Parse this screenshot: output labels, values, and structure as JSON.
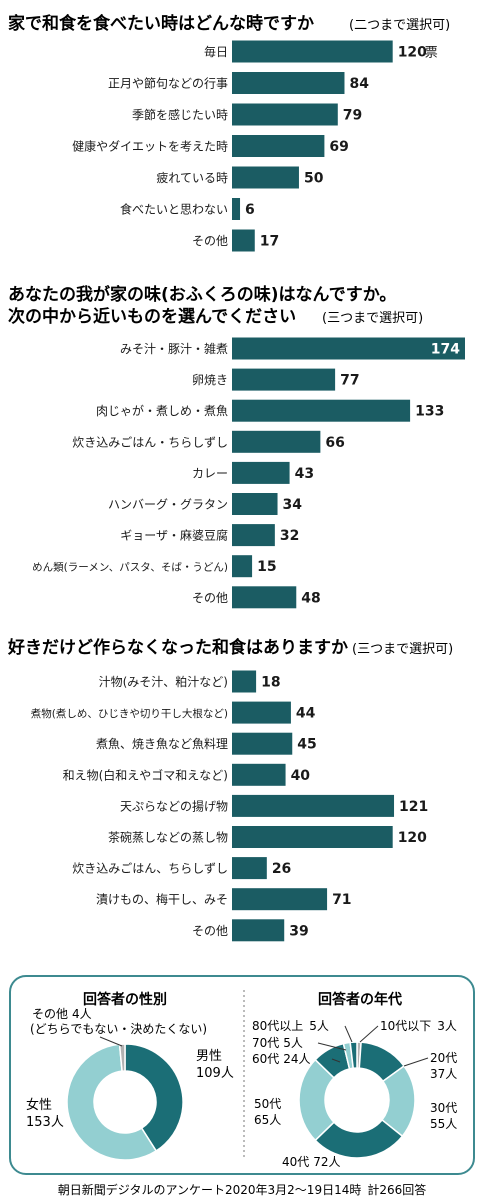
{
  "colors": {
    "bar": "#1b5c63",
    "donut_dark": "#1b6e76",
    "donut_light": "#93cfd1",
    "donut_gray": "#b2b2b2",
    "box_border": "#3d8a90",
    "text": "#1a1a1a"
  },
  "chart_data": [
    {
      "type": "bar",
      "orientation": "horizontal",
      "title": "家で和食を食べたい時はどんな時ですか",
      "subtitle": "(二つまで選択可)",
      "categories": [
        "毎日",
        "正月や節句などの行事",
        "季節を感じたい時",
        "健康やダイエットを考えた時",
        "疲れている時",
        "食べたいと思わない",
        "その他"
      ],
      "values": [
        120,
        84,
        79,
        69,
        50,
        6,
        17
      ],
      "value_labels": [
        "120",
        "84",
        "79",
        "69",
        "50",
        "6",
        "17"
      ],
      "unit_on_first": "票"
    },
    {
      "type": "bar",
      "orientation": "horizontal",
      "title": "あなたの我が家の味(おふくろの味)はなんですか。",
      "title2": "次の中から近いものを選んでください",
      "subtitle": "(三つまで選択可)",
      "categories": [
        "みそ汁・豚汁・雑煮",
        "卵焼き",
        "肉じゃが・煮しめ・煮魚",
        "炊き込みごはん・ちらしずし",
        "カレー",
        "ハンバーグ・グラタン",
        "ギョーザ・麻婆豆腐",
        "めん類(ラーメン、パスタ、そば・うどん)",
        "その他"
      ],
      "values": [
        174,
        77,
        133,
        66,
        43,
        34,
        32,
        15,
        48
      ],
      "value_labels": [
        "174",
        "77",
        "133",
        "66",
        "43",
        "34",
        "32",
        "15",
        "48"
      ]
    },
    {
      "type": "bar",
      "orientation": "horizontal",
      "title": "好きだけど作らなくなった和食はありますか",
      "subtitle": "(三つまで選択可)",
      "categories": [
        "汁物(みそ汁、粕汁など)",
        "煮物(煮しめ、ひじきや切り干し大根など)",
        "煮魚、焼き魚など魚料理",
        "和え物(白和えやゴマ和えなど)",
        "天ぷらなどの揚げ物",
        "茶碗蒸しなどの蒸し物",
        "炊き込みごはん、ちらしずし",
        "漬けもの、梅干し、みそ",
        "その他"
      ],
      "values": [
        18,
        44,
        45,
        40,
        121,
        120,
        26,
        71,
        39
      ],
      "value_labels": [
        "18",
        "44",
        "45",
        "40",
        "121",
        "120",
        "26",
        "71",
        "39"
      ]
    },
    {
      "type": "pie",
      "donut": true,
      "title": "回答者の性別",
      "slices": [
        {
          "label": "男性",
          "value_text": "109人",
          "value": 109,
          "color_key": "donut_dark"
        },
        {
          "label": "女性",
          "value_text": "153人",
          "value": 153,
          "color_key": "donut_light"
        },
        {
          "label": "その他",
          "value_text": "4人",
          "note": "(どちらでもない・決めたくない)",
          "value": 4,
          "color_key": "donut_gray"
        }
      ]
    },
    {
      "type": "pie",
      "donut": true,
      "title": "回答者の年代",
      "slices": [
        {
          "label": "10代以下",
          "value_text": "3人",
          "value": 3,
          "color_key": "donut_gray"
        },
        {
          "label": "20代",
          "value_text": "37人",
          "value": 37,
          "color_key": "donut_dark"
        },
        {
          "label": "30代",
          "value_text": "55人",
          "value": 55,
          "color_key": "donut_light"
        },
        {
          "label": "40代",
          "value_text": "72人",
          "value": 72,
          "color_key": "donut_dark"
        },
        {
          "label": "50代",
          "value_text": "65人",
          "value": 65,
          "color_key": "donut_light"
        },
        {
          "label": "60代",
          "value_text": "24人",
          "value": 24,
          "color_key": "donut_dark"
        },
        {
          "label": "70代",
          "value_text": "5人",
          "value": 5,
          "color_key": "donut_light"
        },
        {
          "label": "80代以上",
          "value_text": "5人",
          "value": 5,
          "color_key": "donut_dark"
        }
      ]
    }
  ],
  "footer": {
    "source": "朝日新聞デジタルのアンケート2020年3月2～19日14時",
    "total": "計266回答"
  }
}
